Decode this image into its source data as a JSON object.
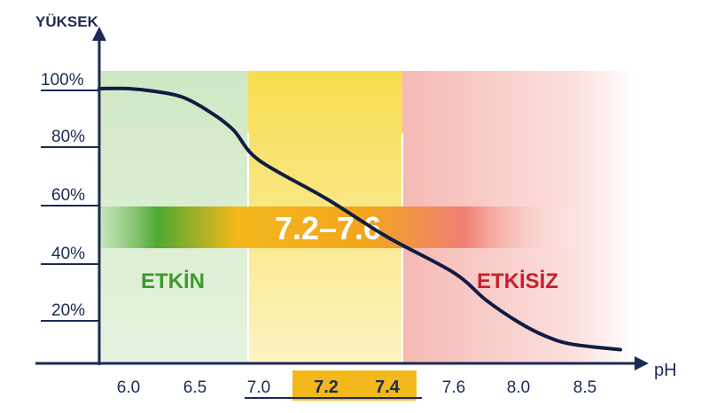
{
  "chart_data": {
    "type": "line",
    "title": "",
    "ylabel": "YÜKSEK",
    "xlabel": "pH",
    "y_ticks": [
      "100%",
      "80%",
      "60%",
      "40%",
      "20%"
    ],
    "x_ticks": [
      "6.0",
      "6.5",
      "7.0",
      "7.2",
      "7.4",
      "7.6",
      "8.0",
      "8.5"
    ],
    "highlight_ticks": [
      "7.2",
      "7.4"
    ],
    "optimal_range_label": "7.2–7.6",
    "zones": [
      {
        "label": "ETKİN",
        "from": 5.9,
        "to": 6.9,
        "color": "#7fc46e"
      },
      {
        "label": "",
        "from": 6.9,
        "to": 7.45,
        "color": "#f5d33a"
      },
      {
        "label": "ETKİSİZ",
        "from": 7.45,
        "to": 8.6,
        "color": "#ef6b6b"
      }
    ],
    "series": [
      {
        "x": [
          5.9,
          6.0,
          6.2,
          6.4,
          6.6,
          6.8,
          7.0,
          7.2,
          7.4,
          7.6,
          7.8,
          8.0,
          8.2,
          8.4,
          8.6
        ],
        "values": [
          100,
          100,
          99,
          97,
          92,
          85,
          74,
          60,
          46,
          33,
          23,
          15,
          10,
          7,
          5
        ]
      }
    ],
    "xlim": [
      5.9,
      8.6
    ],
    "ylim": [
      0,
      100
    ],
    "grid": false,
    "colors": {
      "axis": "#1b2a55",
      "curve": "#0f1d44",
      "band": "#f2a51c",
      "highlight": "#f2b81c"
    }
  }
}
